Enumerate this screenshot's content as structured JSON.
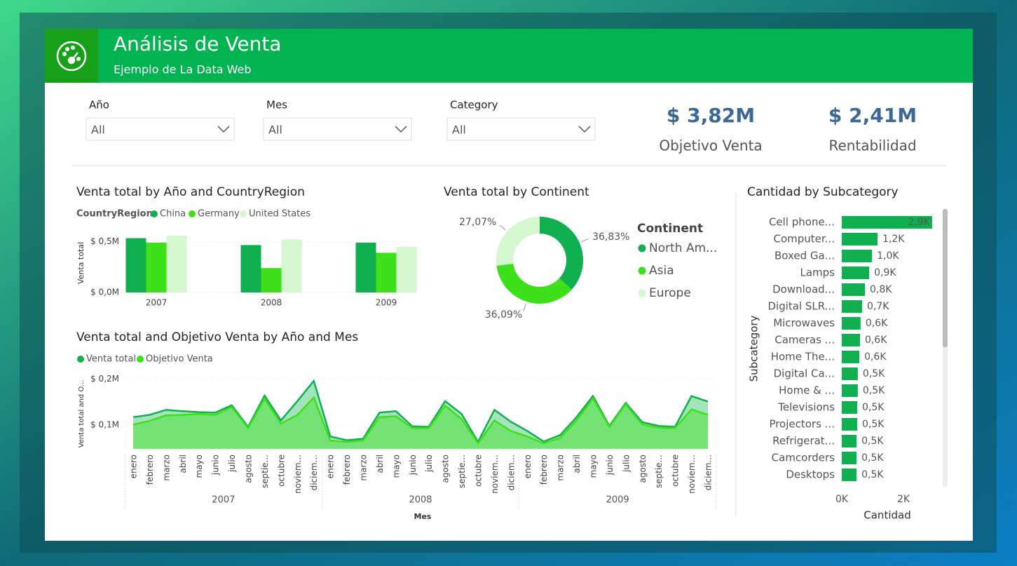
{
  "header": {
    "title": "Análisis de Venta",
    "subtitle": "Ejemplo de La Data Web"
  },
  "filters": [
    {
      "label": "Año",
      "value": "All"
    },
    {
      "label": "Mes",
      "value": "All"
    },
    {
      "label": "Category",
      "value": "All"
    }
  ],
  "kpis": [
    {
      "value": "$ 3,82M",
      "label": "Objetivo Venta"
    },
    {
      "value": "$ 2,41M",
      "label": "Rentabilidad"
    }
  ],
  "chart_data": [
    {
      "type": "bar",
      "title": "Venta total by Año and CountryRegion",
      "legend_title": "CountryRegion",
      "y_label": "Venta total",
      "categories": [
        "2007",
        "2008",
        "2009"
      ],
      "series": [
        {
          "name": "China",
          "color": "#10b050",
          "values": [
            534000,
            466000,
            490000
          ]
        },
        {
          "name": "Germany",
          "color": "#3ee01a",
          "values": [
            490000,
            240000,
            390000
          ]
        },
        {
          "name": "United States",
          "color": "#d4f7d0",
          "values": [
            560000,
            520000,
            450000
          ]
        }
      ],
      "ylim": [
        0,
        600000
      ],
      "yticks": [
        {
          "value": 0,
          "label": "$ 0,0M"
        },
        {
          "value": 500000,
          "label": "$ 0,5M"
        }
      ],
      "grid": true
    },
    {
      "type": "pie",
      "donut": true,
      "title": "Venta total by Continent",
      "legend_title": "Continent",
      "categories": [
        "North Am...",
        "Asia",
        "Europe"
      ],
      "values": [
        36.83,
        36.09,
        27.07
      ],
      "value_labels": [
        "36,83%",
        "36,09%",
        "27,07%"
      ],
      "colors": [
        "#10b050",
        "#3ee01a",
        "#d4f7d0"
      ]
    },
    {
      "type": "area",
      "title": "Venta total and Objetivo Venta by Año and Mes",
      "x_label": "Mes",
      "y_label": "Venta total and O...",
      "categories": [
        "enero",
        "febrero",
        "marzo",
        "abril",
        "mayo",
        "junio",
        "julio",
        "agosto",
        "septie...",
        "octubre",
        "noviem...",
        "diciem...",
        "enero",
        "febrero",
        "marzo",
        "abril",
        "mayo",
        "junio",
        "julio",
        "agosto",
        "septie...",
        "octubre",
        "noviem...",
        "diciem...",
        "enero",
        "febrero",
        "marzo",
        "abril",
        "mayo",
        "junio",
        "julio",
        "agosto",
        "septie...",
        "octubre",
        "noviem...",
        "diciem..."
      ],
      "groups": [
        "2007",
        "2008",
        "2009"
      ],
      "series": [
        {
          "name": "Venta total",
          "color": "#10b050",
          "fill": "#a3e4bd",
          "values": [
            117000,
            122000,
            133000,
            130000,
            128000,
            127000,
            143000,
            96000,
            164000,
            110000,
            152000,
            196000,
            75000,
            67000,
            70000,
            127000,
            130000,
            97000,
            96000,
            152000,
            124000,
            63000,
            133000,
            107000,
            87000,
            64000,
            78000,
            117000,
            163000,
            98000,
            148000,
            106000,
            98000,
            96000,
            163000,
            151000
          ]
        },
        {
          "name": "Objetivo Venta",
          "color": "#3ee01a",
          "fill": "#74e274",
          "values": [
            101000,
            109000,
            121000,
            122000,
            124000,
            122000,
            139000,
            93000,
            157000,
            103000,
            122000,
            160000,
            66000,
            63000,
            66000,
            117000,
            119000,
            93000,
            93000,
            142000,
            113000,
            60000,
            110000,
            87000,
            75000,
            60000,
            72000,
            110000,
            158000,
            96000,
            145000,
            101000,
            94000,
            93000,
            134000,
            122000
          ]
        }
      ],
      "ylim": [
        48000,
        216000
      ],
      "yticks": [
        {
          "value": 100000,
          "label": "$ 0,1M"
        },
        {
          "value": 200000,
          "label": "$ 0,2M"
        }
      ],
      "grid": true
    },
    {
      "type": "bar",
      "horizontal": true,
      "title": "Cantidad by Subcategory",
      "x_label": "Cantidad",
      "y_label": "Subcategory",
      "color": "#10b050",
      "categories": [
        "Cell phone...",
        "Computer...",
        "Boxed Ga...",
        "Lamps",
        "Download...",
        "Digital SLR...",
        "Microwaves",
        "Cameras ...",
        "Home The...",
        "Digital Ca...",
        "Home & ...",
        "Televisions",
        "Projectors ...",
        "Refrigerat...",
        "Camcorders",
        "Desktops"
      ],
      "values": [
        2930,
        1160,
        980,
        890,
        750,
        660,
        610,
        590,
        570,
        520,
        520,
        500,
        500,
        480,
        480,
        480
      ],
      "value_labels": [
        "2,9K",
        "1,2K",
        "1,0K",
        "0,9K",
        "0,8K",
        "0,7K",
        "0,6K",
        "0,6K",
        "0,6K",
        "0,5K",
        "0,5K",
        "0,5K",
        "0,5K",
        "0,5K",
        "0,5K",
        "0,5K"
      ],
      "xlim": [
        0,
        3000
      ],
      "xticks": [
        {
          "value": 0,
          "label": "0K"
        },
        {
          "value": 2000,
          "label": "2K"
        }
      ]
    }
  ]
}
